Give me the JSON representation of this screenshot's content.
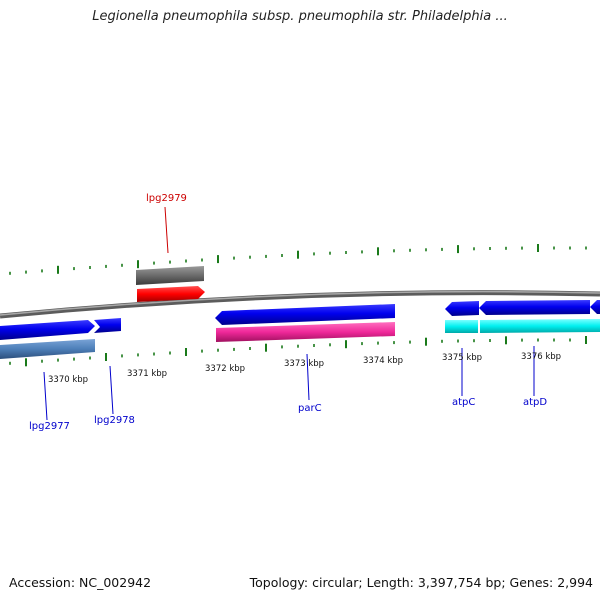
{
  "title": "Legionella pneumophila subsp. pneumophila str. Philadelphia ...",
  "footer": {
    "accession": "Accession: NC_002942",
    "summary": "Topology: circular; Length: 3,397,754 bp; Genes: 2,994"
  },
  "scale_labels": [
    "3370 kbp",
    "3371 kbp",
    "3372 kbp",
    "3373 kbp",
    "3374 kbp",
    "3375 kbp",
    "3376 kbp"
  ],
  "genes": [
    {
      "label": "lpg2977",
      "label_color": "#0000cc"
    },
    {
      "label": "lpg2978",
      "label_color": "#0000cc"
    },
    {
      "label": "lpg2979",
      "label_color": "#cc0000"
    },
    {
      "label": "parC",
      "label_color": "#0000cc"
    },
    {
      "label": "atpC",
      "label_color": "#0000cc"
    },
    {
      "label": "atpD",
      "label_color": "#0000cc"
    }
  ],
  "colors": {
    "backbone": "#808080",
    "tick": "#1a7a1a",
    "cds_forward": "#0000ee",
    "cds_reverse_blue": "#4d7fb8",
    "cds_red": "#ff0000",
    "cds_gray": "#6b6b6b",
    "cds_pink": "#f0289a",
    "cds_cyan": "#00f0f0"
  }
}
